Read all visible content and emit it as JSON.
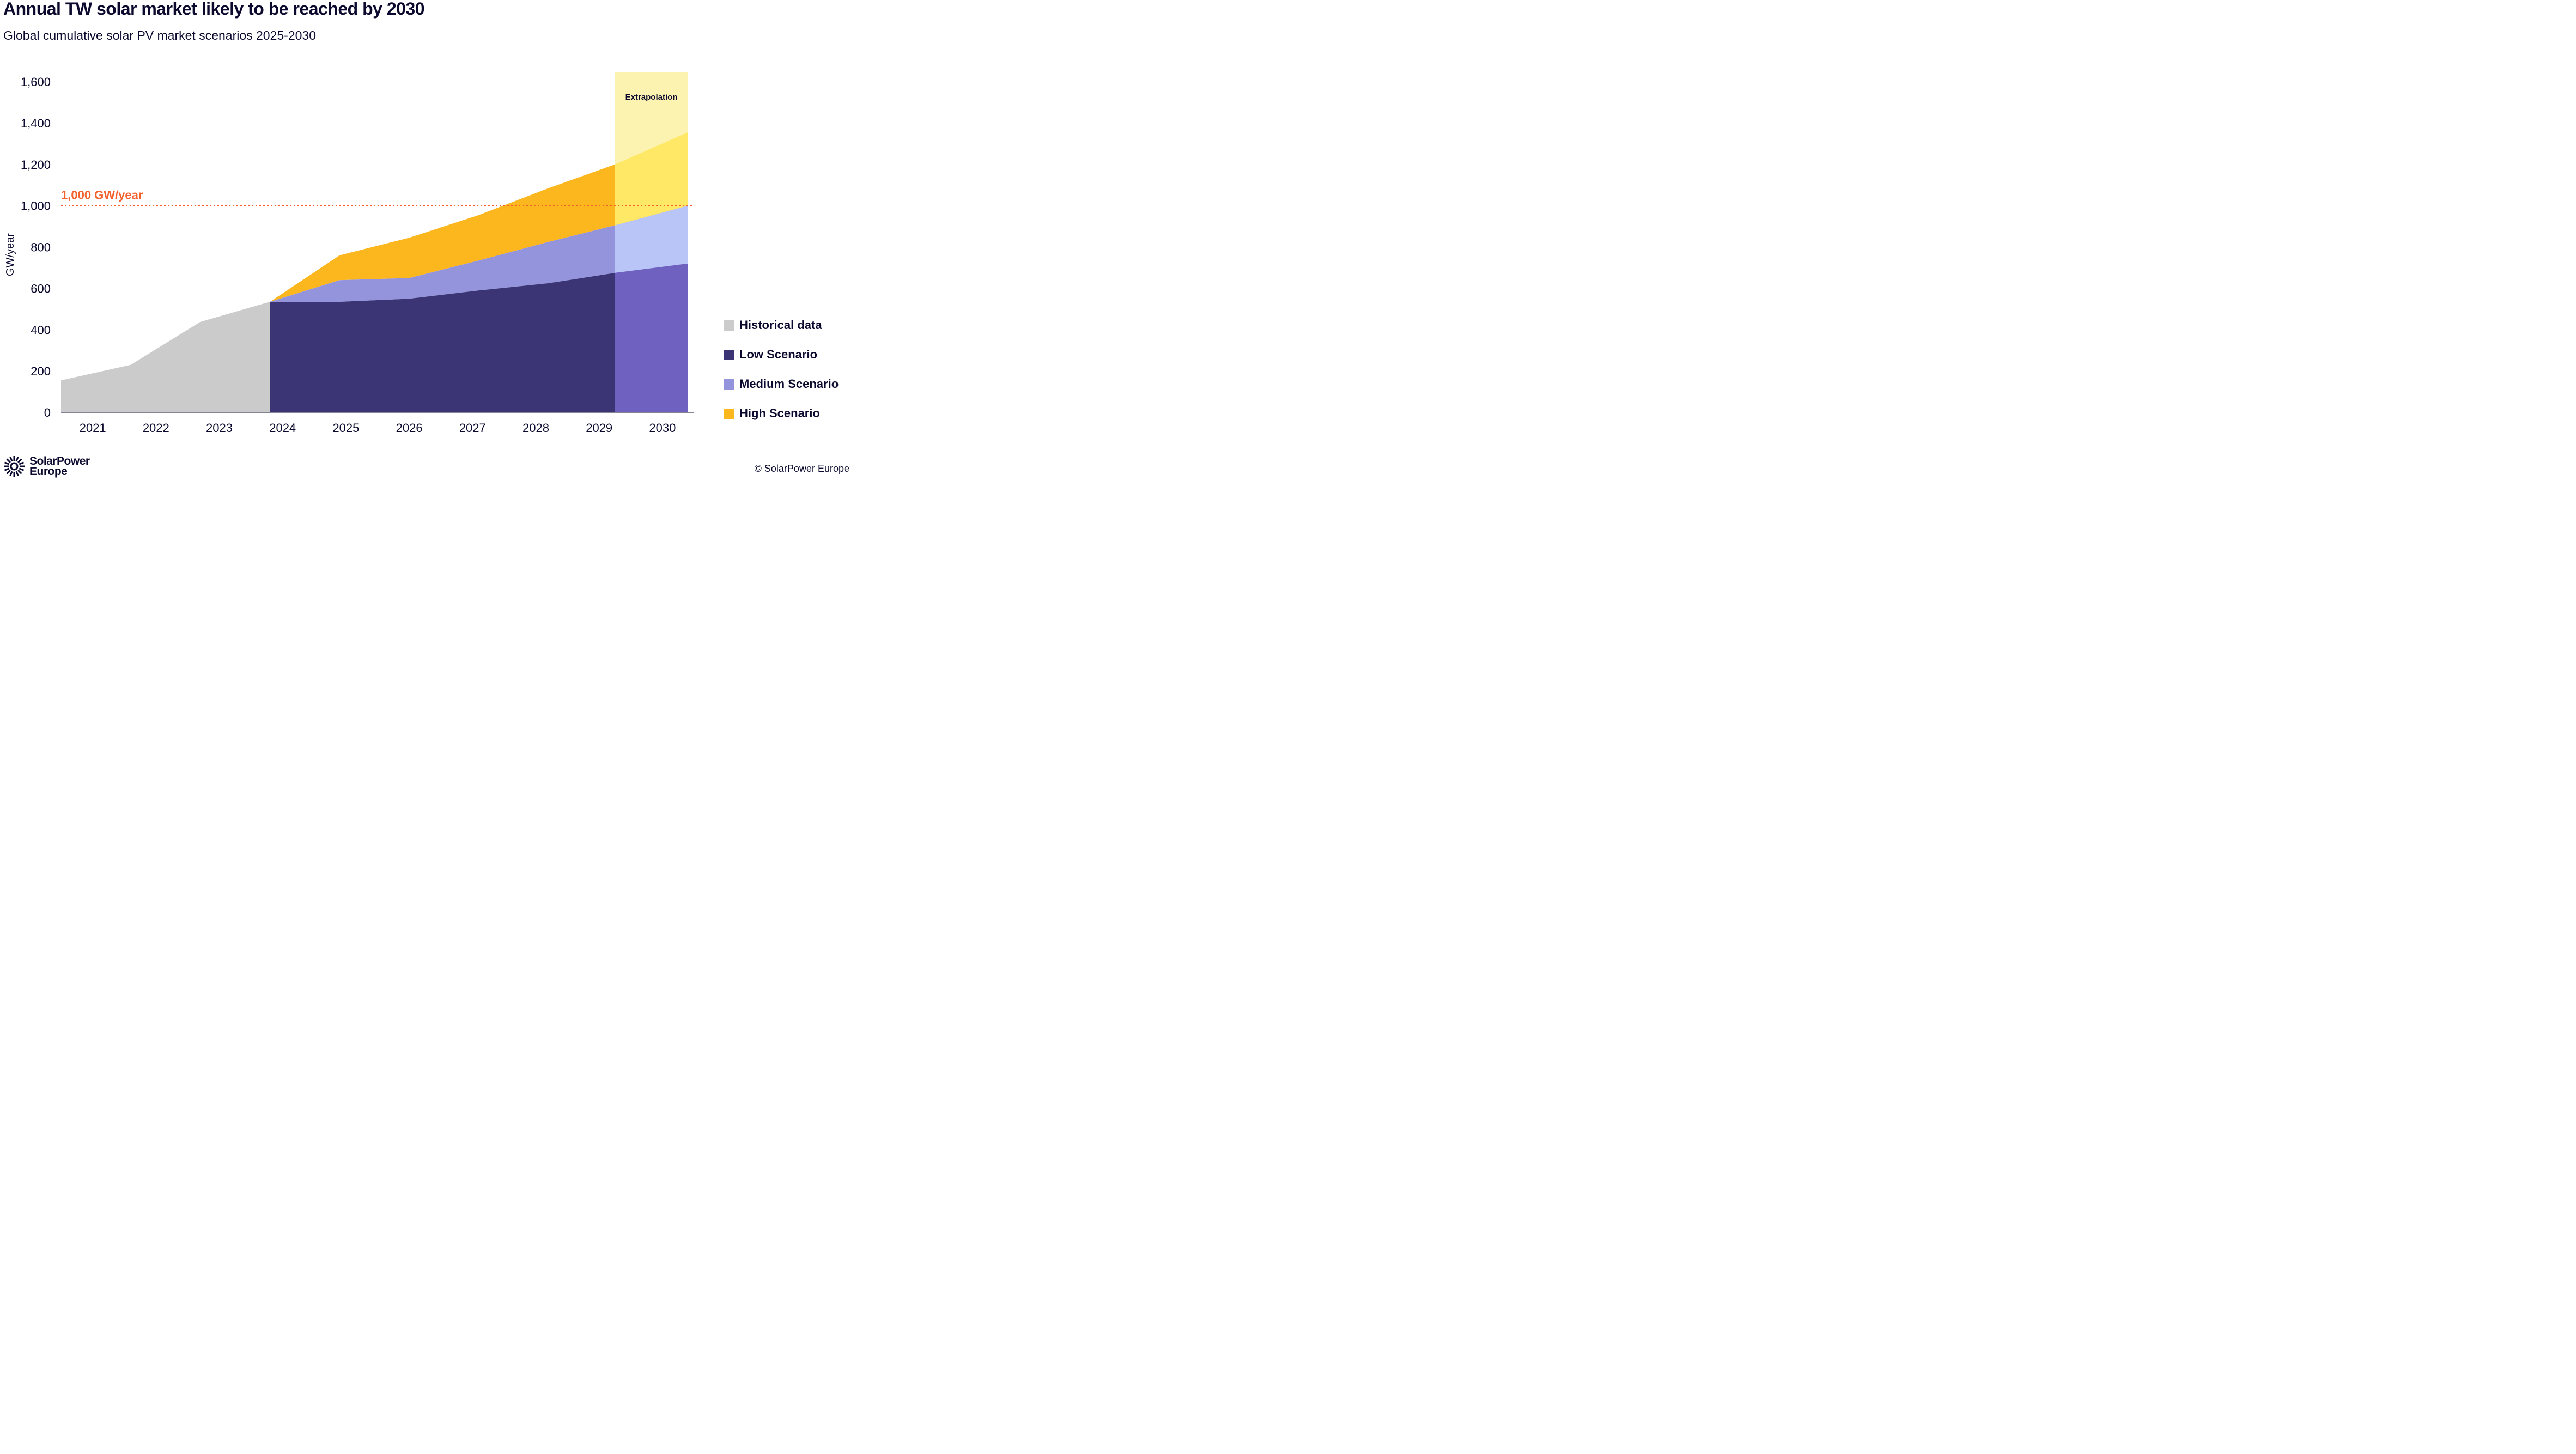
{
  "header": {
    "title": "Annual TW solar market likely to be reached by 2030",
    "subtitle": "Global cumulative solar PV market scenarios 2025-2030"
  },
  "chart_data": {
    "type": "area",
    "title": "Annual TW solar market likely to be reached by 2030",
    "subtitle": "Global cumulative solar PV market scenarios 2025-2030",
    "xlabel": "",
    "ylabel": "GW/year",
    "ylim": [
      0,
      1600
    ],
    "yticks": [
      0,
      200,
      400,
      600,
      800,
      1000,
      1200,
      1400,
      1600
    ],
    "ytick_labels": [
      "0",
      "200",
      "400",
      "600",
      "800",
      "1,000",
      "1,200",
      "1,400",
      "1,600"
    ],
    "categories": [
      "2021",
      "2022",
      "2023",
      "2024",
      "2025",
      "2026",
      "2027",
      "2028",
      "2029",
      "2030"
    ],
    "grid": false,
    "legend_position": "right",
    "series": [
      {
        "name": "Historical data",
        "color": "#cbcbcb",
        "x": [
          0,
          1.1,
          2.2,
          3.3
        ],
        "values": [
          155,
          230,
          438,
          535
        ]
      },
      {
        "name": "Low Scenario",
        "color": "#3c3575",
        "x": [
          3.3,
          4.4,
          5.5,
          6.6,
          7.7,
          8.75,
          9.9
        ],
        "values": [
          535,
          535,
          550,
          590,
          625,
          675,
          720
        ]
      },
      {
        "name": "Medium Scenario",
        "color": "#9494dc",
        "x": [
          3.3,
          4.4,
          5.5,
          6.6,
          7.7,
          8.75,
          9.9
        ],
        "values": [
          535,
          640,
          650,
          735,
          825,
          905,
          1000
        ]
      },
      {
        "name": "High Scenario",
        "color": "#fcb71f",
        "x": [
          3.3,
          4.4,
          5.5,
          6.6,
          7.7,
          8.75,
          9.9
        ],
        "values": [
          535,
          760,
          845,
          955,
          1085,
          1200,
          1355
        ]
      }
    ],
    "extrapolation_colors": {
      "Low Scenario": "#6f61c0",
      "Medium Scenario": "#b9c5f7",
      "High Scenario": "#fee866",
      "background": "#fdf3b0"
    },
    "reference_line": {
      "value": 1000,
      "label": "1,000 GW/year",
      "color": "#f4612c",
      "style": "dotted"
    },
    "annotations": [
      {
        "text": "Extrapolation",
        "region": "2029.5-2030"
      }
    ]
  },
  "legend": {
    "items": [
      {
        "label": "Historical data",
        "color": "#cbcbcb"
      },
      {
        "label": "Low Scenario",
        "color": "#3c3575"
      },
      {
        "label": "Medium Scenario",
        "color": "#9494dc"
      },
      {
        "label": "High Scenario",
        "color": "#fcb71f"
      }
    ]
  },
  "footer": {
    "logo_line1": "SolarPower",
    "logo_line2": "Europe",
    "logo_icon": "sun-icon",
    "copyright": "© SolarPower Europe"
  }
}
